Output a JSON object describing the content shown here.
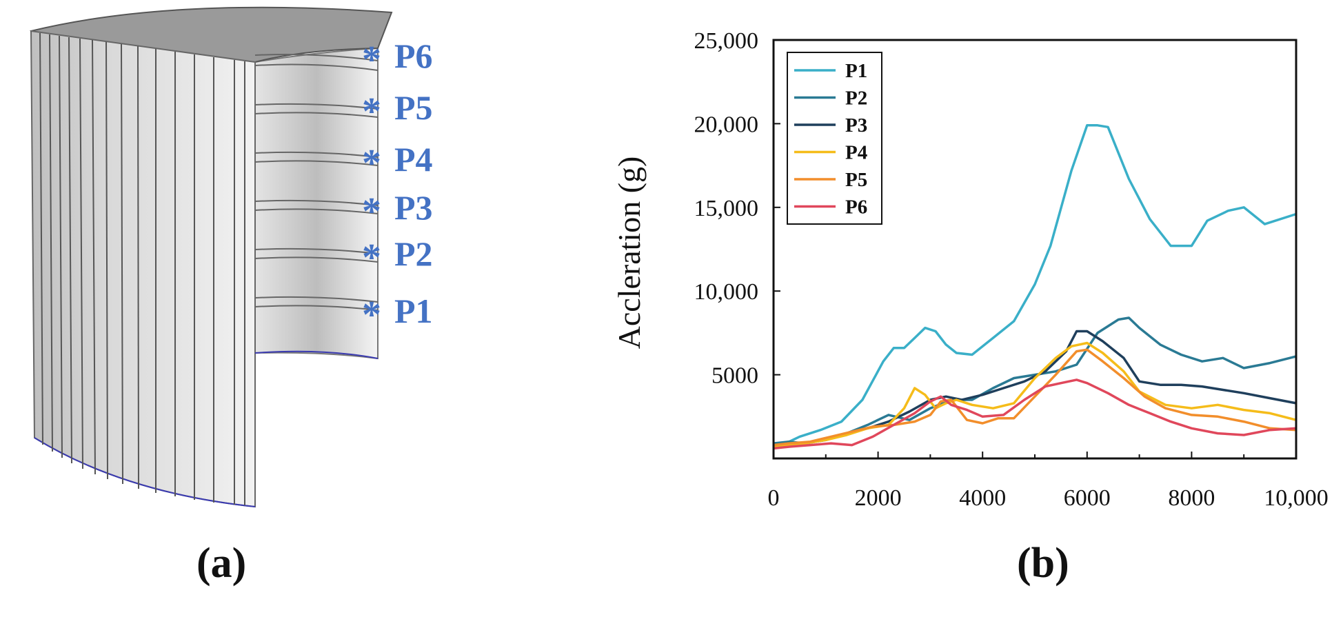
{
  "panel_a": {
    "caption": "(a)",
    "markers": [
      {
        "symbol": "*",
        "label": "P6"
      },
      {
        "symbol": "*",
        "label": "P5"
      },
      {
        "symbol": "*",
        "label": "P4"
      },
      {
        "symbol": "*",
        "label": "P3"
      },
      {
        "symbol": "*",
        "label": "P2"
      },
      {
        "symbol": "*",
        "label": "P1"
      }
    ],
    "marker_color": "#4472C4"
  },
  "panel_b": {
    "caption": "(b)"
  },
  "chart_data": {
    "type": "line",
    "title": "",
    "xlabel": "",
    "ylabel": "Accleration (g)",
    "xlim": [
      0,
      10000
    ],
    "ylim": [
      0,
      25000
    ],
    "x_ticks": [
      {
        "value": 0,
        "label": "0"
      },
      {
        "value": 2000,
        "label": "2000"
      },
      {
        "value": 4000,
        "label": "4000"
      },
      {
        "value": 6000,
        "label": "6000"
      },
      {
        "value": 8000,
        "label": "8000"
      },
      {
        "value": 10000,
        "label": "10,000"
      }
    ],
    "y_ticks": [
      {
        "value": 5000,
        "label": "5000"
      },
      {
        "value": 10000,
        "label": "10,000"
      },
      {
        "value": 15000,
        "label": "15,000"
      },
      {
        "value": 20000,
        "label": "20,000"
      },
      {
        "value": 25000,
        "label": "25,000"
      }
    ],
    "legend_position": "top-left",
    "series": [
      {
        "name": "P1",
        "color": "#3AAFC8",
        "x": [
          0,
          300,
          500,
          900,
          1300,
          1700,
          2100,
          2300,
          2500,
          2700,
          2900,
          3100,
          3300,
          3500,
          3800,
          4200,
          4600,
          5000,
          5300,
          5700,
          6000,
          6200,
          6400,
          6800,
          7200,
          7600,
          8000,
          8300,
          8700,
          9000,
          9400,
          10000
        ],
        "y": [
          800,
          1000,
          1300,
          1700,
          2200,
          3500,
          5800,
          6600,
          6600,
          7200,
          7800,
          7600,
          6800,
          6300,
          6200,
          7200,
          8200,
          10400,
          12700,
          17200,
          19900,
          19900,
          19800,
          16700,
          14300,
          12700,
          12700,
          14200,
          14800,
          15000,
          14000,
          14600
        ]
      },
      {
        "name": "P2",
        "color": "#2A7A94",
        "x": [
          0,
          300,
          600,
          1000,
          1400,
          1800,
          2200,
          2600,
          3000,
          3400,
          3800,
          4200,
          4600,
          5000,
          5400,
          5800,
          6200,
          6600,
          6800,
          7000,
          7400,
          7800,
          8200,
          8600,
          9000,
          9500,
          10000
        ],
        "y": [
          900,
          1000,
          900,
          1200,
          1500,
          2000,
          2600,
          2300,
          3000,
          3500,
          3500,
          4200,
          4800,
          5000,
          5200,
          5600,
          7500,
          8300,
          8400,
          7800,
          6800,
          6200,
          5800,
          6000,
          5400,
          5700,
          6100
        ]
      },
      {
        "name": "P3",
        "color": "#1F3F5C",
        "x": [
          0,
          300,
          600,
          1000,
          1400,
          1800,
          2200,
          2600,
          3000,
          3300,
          3600,
          4000,
          4400,
          4800,
          5200,
          5600,
          5800,
          6000,
          6300,
          6700,
          7000,
          7400,
          7800,
          8200,
          8600,
          9000,
          9500,
          10000
        ],
        "y": [
          800,
          900,
          900,
          1100,
          1500,
          1800,
          2200,
          2800,
          3500,
          3700,
          3500,
          3800,
          4200,
          4600,
          5200,
          6400,
          7600,
          7600,
          7000,
          6000,
          4600,
          4400,
          4400,
          4300,
          4100,
          3900,
          3600,
          3300
        ]
      },
      {
        "name": "P4",
        "color": "#F5BC1A",
        "x": [
          0,
          300,
          600,
          1000,
          1400,
          1800,
          2200,
          2500,
          2700,
          2900,
          3100,
          3300,
          3500,
          3800,
          4200,
          4600,
          5000,
          5400,
          5700,
          6000,
          6300,
          6700,
          7000,
          7500,
          8000,
          8500,
          9000,
          9500,
          10000
        ],
        "y": [
          700,
          800,
          900,
          1100,
          1400,
          1800,
          2000,
          3000,
          4200,
          3800,
          3000,
          3300,
          3500,
          3200,
          3000,
          3300,
          4800,
          6000,
          6700,
          6900,
          6300,
          5200,
          4000,
          3200,
          3000,
          3200,
          2900,
          2700,
          2300
        ]
      },
      {
        "name": "P5",
        "color": "#F28E2B",
        "x": [
          0,
          300,
          700,
          1100,
          1500,
          1900,
          2300,
          2700,
          3000,
          3200,
          3400,
          3700,
          4000,
          4300,
          4600,
          5000,
          5400,
          5800,
          6000,
          6300,
          6700,
          7100,
          7500,
          8000,
          8500,
          9000,
          9500,
          10000
        ],
        "y": [
          800,
          900,
          1000,
          1300,
          1600,
          1900,
          2000,
          2200,
          2600,
          3400,
          3500,
          2300,
          2100,
          2400,
          2400,
          3700,
          5000,
          6400,
          6500,
          5800,
          4800,
          3700,
          3000,
          2600,
          2500,
          2200,
          1800,
          1700
        ]
      },
      {
        "name": "P6",
        "color": "#E0475B",
        "x": [
          0,
          300,
          700,
          1100,
          1500,
          1900,
          2300,
          2700,
          3000,
          3200,
          3400,
          3700,
          4000,
          4400,
          4800,
          5200,
          5500,
          5800,
          6000,
          6400,
          6800,
          7200,
          7600,
          8000,
          8500,
          9000,
          9500,
          10000
        ],
        "y": [
          600,
          700,
          800,
          900,
          800,
          1300,
          2000,
          2700,
          3400,
          3700,
          3200,
          2900,
          2500,
          2600,
          3500,
          4300,
          4500,
          4700,
          4500,
          3900,
          3200,
          2700,
          2200,
          1800,
          1500,
          1400,
          1700,
          1800
        ]
      }
    ]
  }
}
